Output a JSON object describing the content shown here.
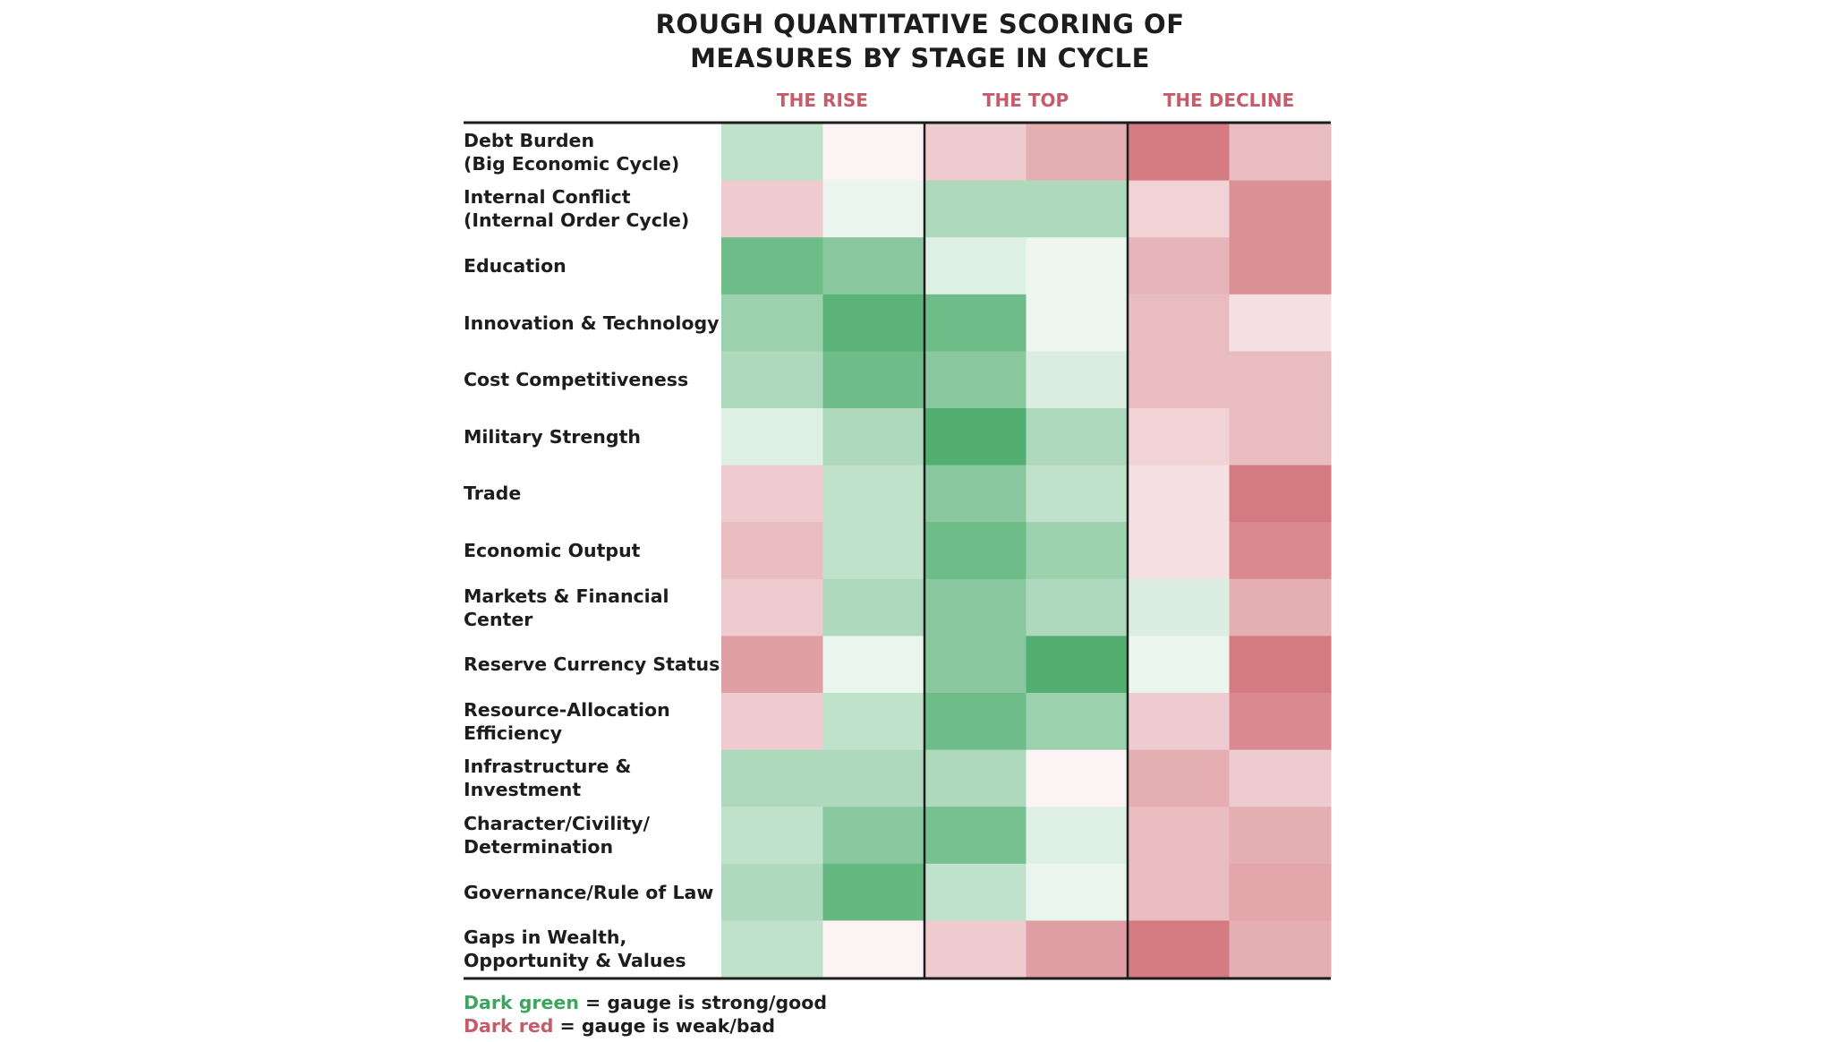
{
  "chart_data": {
    "type": "heatmap",
    "title": [
      "ROUGH QUANTITATIVE SCORING OF",
      "MEASURES BY STAGE IN CYCLE"
    ],
    "stages": [
      "THE RISE",
      "THE TOP",
      "THE DECLINE"
    ],
    "columns_per_stage": 2,
    "scale_note": "score from -1 (dark red, weak/bad) to +1 (dark green, strong/good)",
    "colors": {
      "strong_good": "#4aab6a",
      "neutral": "#ffffff",
      "weak_bad": "#cf6b73",
      "stage_label": "#c65c69",
      "legend_green": "#3fa45f",
      "legend_red": "#c65c69"
    },
    "rows": [
      {
        "label": "Debt Burden\n(Big Economic Cycle)",
        "values": [
          0.35,
          -0.08,
          -0.35,
          -0.55,
          -0.9,
          -0.45
        ]
      },
      {
        "label": "Internal Conflict\n(Internal Order Cycle)",
        "values": [
          -0.35,
          0.12,
          0.45,
          0.45,
          -0.3,
          -0.75
        ]
      },
      {
        "label": "Education",
        "values": [
          0.8,
          0.65,
          0.18,
          0.1,
          -0.5,
          -0.75
        ]
      },
      {
        "label": "Innovation & Technology",
        "values": [
          0.55,
          0.9,
          0.8,
          0.1,
          -0.45,
          -0.2
        ]
      },
      {
        "label": "Cost Competitiveness",
        "values": [
          0.45,
          0.8,
          0.65,
          0.2,
          -0.45,
          -0.45
        ]
      },
      {
        "label": "Military Strength",
        "values": [
          0.18,
          0.45,
          0.95,
          0.45,
          -0.3,
          -0.45
        ]
      },
      {
        "label": "Trade",
        "values": [
          -0.35,
          0.35,
          0.65,
          0.35,
          -0.2,
          -0.9
        ]
      },
      {
        "label": "Economic Output",
        "values": [
          -0.45,
          0.35,
          0.8,
          0.55,
          -0.2,
          -0.8
        ]
      },
      {
        "label": "Markets & Financial Center",
        "values": [
          -0.35,
          0.45,
          0.65,
          0.45,
          0.2,
          -0.55
        ]
      },
      {
        "label": "Reserve Currency Status",
        "values": [
          -0.65,
          0.12,
          0.65,
          0.95,
          0.12,
          -0.9
        ]
      },
      {
        "label": "Resource-Allocation\nEfficiency",
        "values": [
          -0.35,
          0.35,
          0.8,
          0.55,
          -0.35,
          -0.8
        ]
      },
      {
        "label": "Infrastructure & Investment",
        "values": [
          0.45,
          0.45,
          0.45,
          -0.08,
          -0.55,
          -0.35
        ]
      },
      {
        "label": "Character/Civility/\nDetermination",
        "values": [
          0.35,
          0.65,
          0.75,
          0.18,
          -0.45,
          -0.55
        ]
      },
      {
        "label": "Governance/Rule of Law",
        "values": [
          0.45,
          0.85,
          0.35,
          0.12,
          -0.45,
          -0.6
        ]
      },
      {
        "label": "Gaps in Wealth,\nOpportunity & Values",
        "values": [
          0.35,
          -0.08,
          -0.35,
          -0.65,
          -0.9,
          -0.55
        ]
      }
    ]
  },
  "legend": {
    "green_key": "Dark green",
    "green_text": " = gauge is strong/good",
    "red_key": "Dark red",
    "red_text": " = gauge is weak/bad"
  }
}
